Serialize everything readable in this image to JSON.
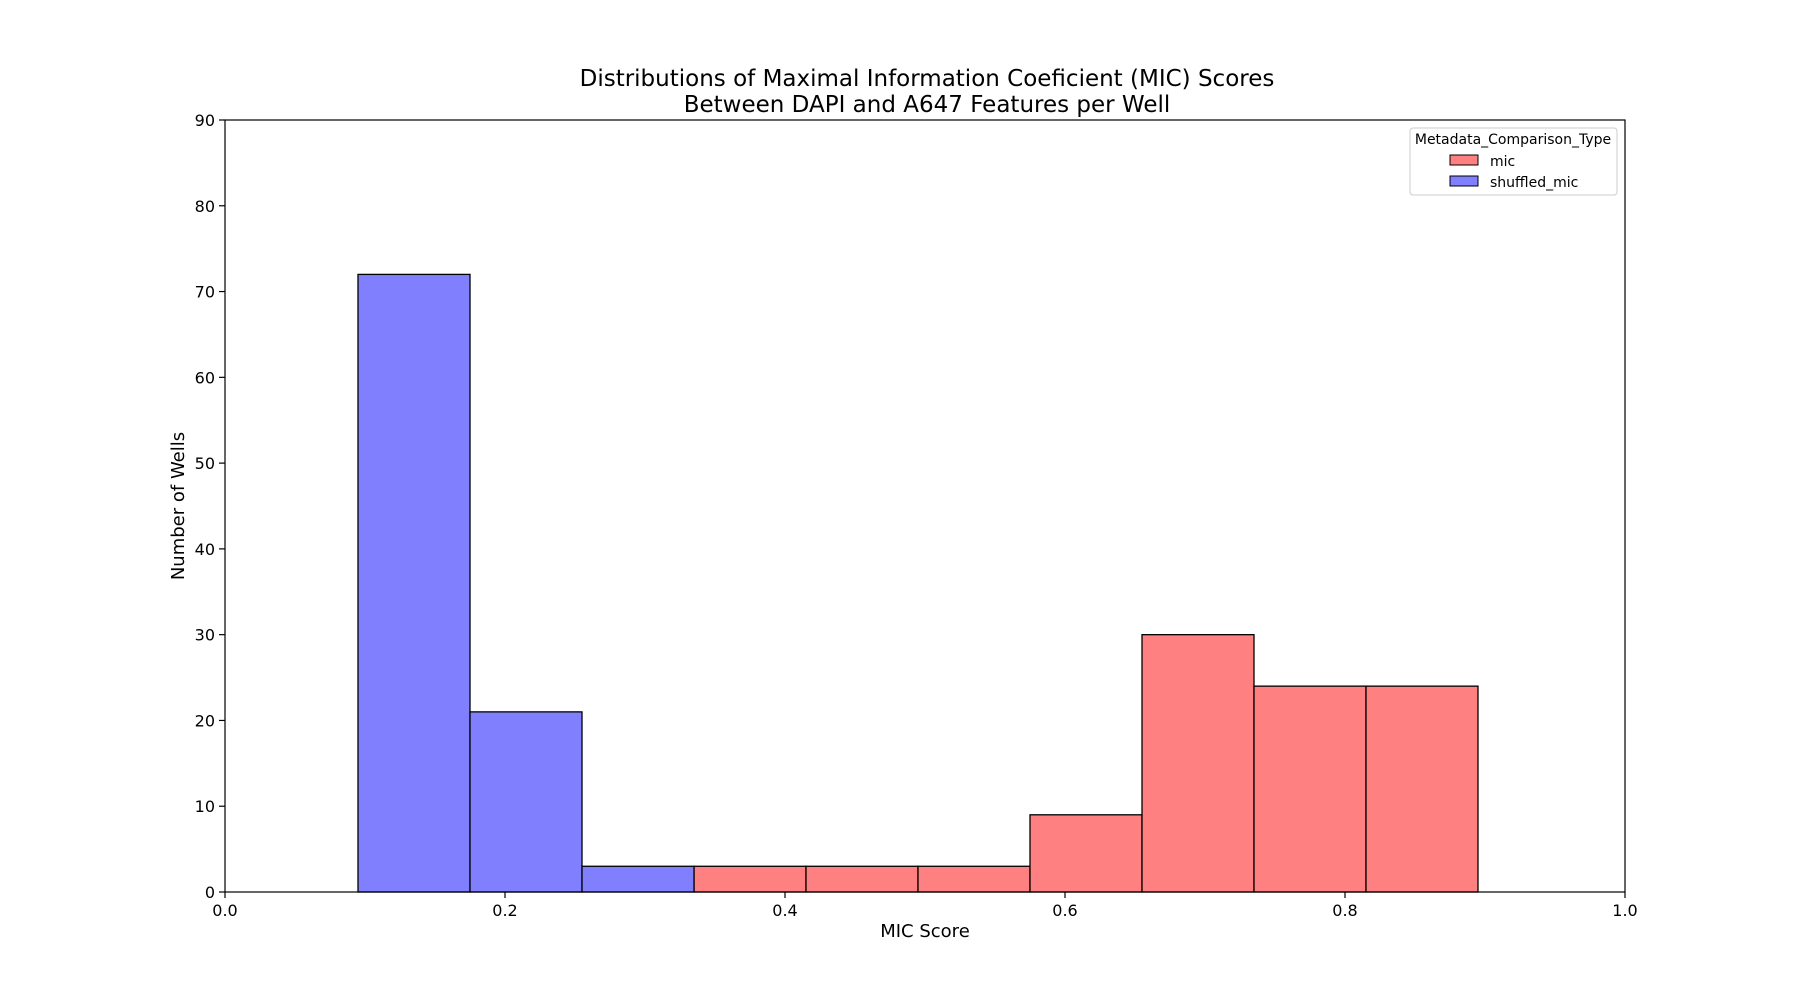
{
  "chart_data": {
    "type": "bar",
    "title_lines": [
      "Distributions of Maximal Information Coeficient (MIC) Scores",
      "Between DAPI and A647 Features per Well"
    ],
    "xlabel": "MIC Score",
    "ylabel": "Number of Wells",
    "xlim": [
      0.0,
      1.0
    ],
    "ylim": [
      0,
      90
    ],
    "xticks": [
      "0.0",
      "0.2",
      "0.4",
      "0.6",
      "0.8",
      "1.0"
    ],
    "yticks": [
      "0",
      "10",
      "20",
      "30",
      "40",
      "50",
      "60",
      "70",
      "80",
      "90"
    ],
    "grid": false,
    "legend": {
      "title": "Metadata_Comparison_Type",
      "placement": "top-right"
    },
    "series": [
      {
        "name": "mic",
        "color": "#ff8080",
        "bins": [
          {
            "x0": 0.335,
            "x1": 0.415,
            "count": 3
          },
          {
            "x0": 0.415,
            "x1": 0.495,
            "count": 3
          },
          {
            "x0": 0.495,
            "x1": 0.575,
            "count": 3
          },
          {
            "x0": 0.575,
            "x1": 0.655,
            "count": 9
          },
          {
            "x0": 0.655,
            "x1": 0.735,
            "count": 30
          },
          {
            "x0": 0.735,
            "x1": 0.815,
            "count": 24
          },
          {
            "x0": 0.815,
            "x1": 0.895,
            "count": 24
          }
        ]
      },
      {
        "name": "shuffled_mic",
        "color": "#8080ff",
        "bins": [
          {
            "x0": 0.095,
            "x1": 0.175,
            "count": 72
          },
          {
            "x0": 0.175,
            "x1": 0.255,
            "count": 21
          },
          {
            "x0": 0.255,
            "x1": 0.335,
            "count": 3
          }
        ]
      }
    ]
  }
}
